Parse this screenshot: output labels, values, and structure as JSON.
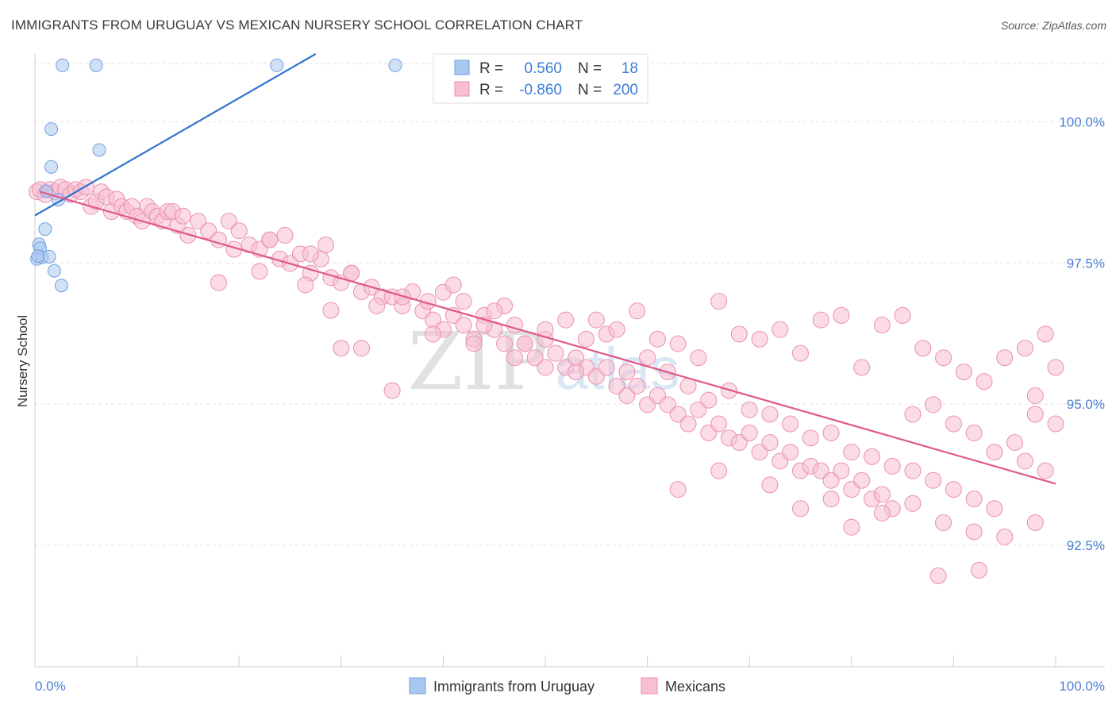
{
  "header": {
    "title": "IMMIGRANTS FROM URUGUAY VS MEXICAN NURSERY SCHOOL CORRELATION CHART",
    "source": "Source: ZipAtlas.com"
  },
  "watermark": {
    "zip": "ZIP",
    "atlas": "atlas"
  },
  "chart_data": {
    "type": "scatter",
    "title": "IMMIGRANTS FROM URUGUAY VS MEXICAN NURSERY SCHOOL CORRELATION CHART",
    "xlabel": "",
    "ylabel": "Nursery School",
    "xlim": [
      0,
      100
    ],
    "ylim": [
      90.35,
      101.2
    ],
    "x_tick_labels": {
      "left": "0.0%",
      "right": "100.0%"
    },
    "x_minor_ticks": [
      0,
      10,
      20,
      30,
      40,
      50,
      60,
      70,
      80,
      90,
      100
    ],
    "y_ticks": [
      {
        "value": 100.0,
        "label": "100.0%"
      },
      {
        "value": 97.5,
        "label": "97.5%"
      },
      {
        "value": 95.0,
        "label": "95.0%"
      },
      {
        "value": 92.5,
        "label": "92.5%"
      }
    ],
    "grid": true,
    "legend": {
      "position": "top-center",
      "rows": [
        {
          "r_label": "R =",
          "r_value": "0.560",
          "n_label": "N =",
          "n_value": "18"
        },
        {
          "r_label": "R =",
          "r_value": "-0.860",
          "n_label": "N =",
          "n_value": "200"
        }
      ]
    },
    "series": [
      {
        "name": "Immigrants from Uruguay",
        "color": "#a9c8ef",
        "stroke": "#6fa0e0",
        "trend_color": "#2f73cc",
        "trend": {
          "x": [
            0,
            27.5
          ],
          "y": [
            98.34,
            101.2
          ]
        },
        "points": [
          [
            0.2,
            97.57
          ],
          [
            0.4,
            97.83
          ],
          [
            0.5,
            97.76
          ],
          [
            0.7,
            97.6
          ],
          [
            1.0,
            98.1
          ],
          [
            1.1,
            98.77
          ],
          [
            1.4,
            97.61
          ],
          [
            1.6,
            99.2
          ],
          [
            1.6,
            99.87
          ],
          [
            1.9,
            97.36
          ],
          [
            2.3,
            98.62
          ],
          [
            2.6,
            97.1
          ],
          [
            2.7,
            101.0
          ],
          [
            6.0,
            101.0
          ],
          [
            6.3,
            99.5
          ],
          [
            23.7,
            101.0
          ],
          [
            35.3,
            101.0
          ],
          [
            0.3,
            97.62
          ]
        ]
      },
      {
        "name": "Mexicans",
        "color": "#f7bfd1",
        "stroke": "#ea8fb0",
        "trend_color": "#e0588a",
        "trend": {
          "x": [
            0.5,
            100
          ],
          "y": [
            98.76,
            93.59
          ]
        },
        "points": [
          [
            0.2,
            98.76
          ],
          [
            0.5,
            98.8
          ],
          [
            1.0,
            98.71
          ],
          [
            1.5,
            98.8
          ],
          [
            2.0,
            98.76
          ],
          [
            2.5,
            98.84
          ],
          [
            3.0,
            98.8
          ],
          [
            3.5,
            98.71
          ],
          [
            4.0,
            98.8
          ],
          [
            4.5,
            98.76
          ],
          [
            5.0,
            98.84
          ],
          [
            5.5,
            98.5
          ],
          [
            6.0,
            98.59
          ],
          [
            6.5,
            98.76
          ],
          [
            7.0,
            98.67
          ],
          [
            7.5,
            98.41
          ],
          [
            8.0,
            98.63
          ],
          [
            8.5,
            98.5
          ],
          [
            9.0,
            98.41
          ],
          [
            9.5,
            98.5
          ],
          [
            10.0,
            98.33
          ],
          [
            10.5,
            98.24
          ],
          [
            11.0,
            98.5
          ],
          [
            11.5,
            98.41
          ],
          [
            12.0,
            98.33
          ],
          [
            12.5,
            98.24
          ],
          [
            13.0,
            98.41
          ],
          [
            13.5,
            98.41
          ],
          [
            14.0,
            98.16
          ],
          [
            14.5,
            98.33
          ],
          [
            15.0,
            97.99
          ],
          [
            16.0,
            98.24
          ],
          [
            17.0,
            98.07
          ],
          [
            18.0,
            97.91
          ],
          [
            19.0,
            98.24
          ],
          [
            20.0,
            98.07
          ],
          [
            21.0,
            97.82
          ],
          [
            22.0,
            97.74
          ],
          [
            23.0,
            97.91
          ],
          [
            24.0,
            97.57
          ],
          [
            25.0,
            97.49
          ],
          [
            26.0,
            97.66
          ],
          [
            27.0,
            97.32
          ],
          [
            28.0,
            97.57
          ],
          [
            29.0,
            97.24
          ],
          [
            30.0,
            97.15
          ],
          [
            31.0,
            97.32
          ],
          [
            32.0,
            96.99
          ],
          [
            33.0,
            97.07
          ],
          [
            34.0,
            96.9
          ],
          [
            35.0,
            96.9
          ],
          [
            36.0,
            96.74
          ],
          [
            37.0,
            96.99
          ],
          [
            38.0,
            96.65
          ],
          [
            39.0,
            96.49
          ],
          [
            40.0,
            96.32
          ],
          [
            41.0,
            96.57
          ],
          [
            42.0,
            96.4
          ],
          [
            43.0,
            96.15
          ],
          [
            44.0,
            96.57
          ],
          [
            45.0,
            96.32
          ],
          [
            46.0,
            96.07
          ],
          [
            47.0,
            96.4
          ],
          [
            48.0,
            96.07
          ],
          [
            49.0,
            95.82
          ],
          [
            50.0,
            96.15
          ],
          [
            51.0,
            95.9
          ],
          [
            52.0,
            95.65
          ],
          [
            53.0,
            95.82
          ],
          [
            54.0,
            95.65
          ],
          [
            55.0,
            95.49
          ],
          [
            56.0,
            95.65
          ],
          [
            57.0,
            95.32
          ],
          [
            58.0,
            95.15
          ],
          [
            59.0,
            95.32
          ],
          [
            60.0,
            94.99
          ],
          [
            61.0,
            95.15
          ],
          [
            62.0,
            94.99
          ],
          [
            63.0,
            94.82
          ],
          [
            64.0,
            94.65
          ],
          [
            65.0,
            94.9
          ],
          [
            66.0,
            94.49
          ],
          [
            67.0,
            94.65
          ],
          [
            68.0,
            94.4
          ],
          [
            69.0,
            94.32
          ],
          [
            70.0,
            94.49
          ],
          [
            71.0,
            94.15
          ],
          [
            72.0,
            94.32
          ],
          [
            73.0,
            93.99
          ],
          [
            74.0,
            94.15
          ],
          [
            75.0,
            93.82
          ],
          [
            76.0,
            93.9
          ],
          [
            77.0,
            93.82
          ],
          [
            78.0,
            93.65
          ],
          [
            79.0,
            93.82
          ],
          [
            80.0,
            93.49
          ],
          [
            81.0,
            93.65
          ],
          [
            82.0,
            93.32
          ],
          [
            83.0,
            93.4
          ],
          [
            84.0,
            93.15
          ],
          [
            22.0,
            97.35
          ],
          [
            26.5,
            97.11
          ],
          [
            29.0,
            96.66
          ],
          [
            31.0,
            97.32
          ],
          [
            33.5,
            96.74
          ],
          [
            36.0,
            96.9
          ],
          [
            38.5,
            96.82
          ],
          [
            40.0,
            96.98
          ],
          [
            42.0,
            96.82
          ],
          [
            44.0,
            96.4
          ],
          [
            46.0,
            96.74
          ],
          [
            48.0,
            96.07
          ],
          [
            50.0,
            96.32
          ],
          [
            52.0,
            96.49
          ],
          [
            54.0,
            96.15
          ],
          [
            56.0,
            96.24
          ],
          [
            58.0,
            95.57
          ],
          [
            60.0,
            95.82
          ],
          [
            62.0,
            95.57
          ],
          [
            64.0,
            95.32
          ],
          [
            66.0,
            95.07
          ],
          [
            68.0,
            95.24
          ],
          [
            70.0,
            94.9
          ],
          [
            72.0,
            94.82
          ],
          [
            74.0,
            94.65
          ],
          [
            76.0,
            94.4
          ],
          [
            78.0,
            94.49
          ],
          [
            80.0,
            94.15
          ],
          [
            82.0,
            94.07
          ],
          [
            84.0,
            93.9
          ],
          [
            86.0,
            93.82
          ],
          [
            88.0,
            93.65
          ],
          [
            90.0,
            93.49
          ],
          [
            92.0,
            93.32
          ],
          [
            94.0,
            93.15
          ],
          [
            30.0,
            95.99
          ],
          [
            32.0,
            95.99
          ],
          [
            35.0,
            95.24
          ],
          [
            39.0,
            96.24
          ],
          [
            41.0,
            97.11
          ],
          [
            43.0,
            96.07
          ],
          [
            45.0,
            96.65
          ],
          [
            47.0,
            95.82
          ],
          [
            50.0,
            95.65
          ],
          [
            53.0,
            95.57
          ],
          [
            55.0,
            96.49
          ],
          [
            57.0,
            96.32
          ],
          [
            59.0,
            96.65
          ],
          [
            61.0,
            96.15
          ],
          [
            63.0,
            96.07
          ],
          [
            65.0,
            95.82
          ],
          [
            67.0,
            96.82
          ],
          [
            69.0,
            96.24
          ],
          [
            71.0,
            96.15
          ],
          [
            73.0,
            96.32
          ],
          [
            75.0,
            95.9
          ],
          [
            77.0,
            96.49
          ],
          [
            79.0,
            96.57
          ],
          [
            81.0,
            95.65
          ],
          [
            83.0,
            96.4
          ],
          [
            85.0,
            96.57
          ],
          [
            87.0,
            95.99
          ],
          [
            89.0,
            95.82
          ],
          [
            91.0,
            95.57
          ],
          [
            93.0,
            95.4
          ],
          [
            95.0,
            95.82
          ],
          [
            97.0,
            95.99
          ],
          [
            99.0,
            96.24
          ],
          [
            100.0,
            95.65
          ],
          [
            98.0,
            95.15
          ],
          [
            86.0,
            94.82
          ],
          [
            88.0,
            94.99
          ],
          [
            90.0,
            94.65
          ],
          [
            92.0,
            94.49
          ],
          [
            94.0,
            94.15
          ],
          [
            96.0,
            94.32
          ],
          [
            98.0,
            94.82
          ],
          [
            100.0,
            94.65
          ],
          [
            97.0,
            93.99
          ],
          [
            99.0,
            93.82
          ],
          [
            63.0,
            93.49
          ],
          [
            67.0,
            93.82
          ],
          [
            72.0,
            93.57
          ],
          [
            75.0,
            93.15
          ],
          [
            78.0,
            93.32
          ],
          [
            80.0,
            92.82
          ],
          [
            83.0,
            93.07
          ],
          [
            86.0,
            93.24
          ],
          [
            89.0,
            92.9
          ],
          [
            92.0,
            92.74
          ],
          [
            95.0,
            92.65
          ],
          [
            98.0,
            92.9
          ],
          [
            88.5,
            91.96
          ],
          [
            92.5,
            92.06
          ],
          [
            18.0,
            97.15
          ],
          [
            19.5,
            97.74
          ],
          [
            23.0,
            97.91
          ],
          [
            24.5,
            97.99
          ],
          [
            27.0,
            97.66
          ],
          [
            28.5,
            97.82
          ]
        ]
      }
    ]
  },
  "bottom_legend": {
    "items": [
      {
        "label": "Immigrants from Uruguay"
      },
      {
        "label": "Mexicans"
      }
    ]
  },
  "colors": {
    "title": "#3a3a3a",
    "tick_label": "#4a7fd0",
    "grid": "#e3e3e3",
    "axis": "#cfcfcf"
  }
}
